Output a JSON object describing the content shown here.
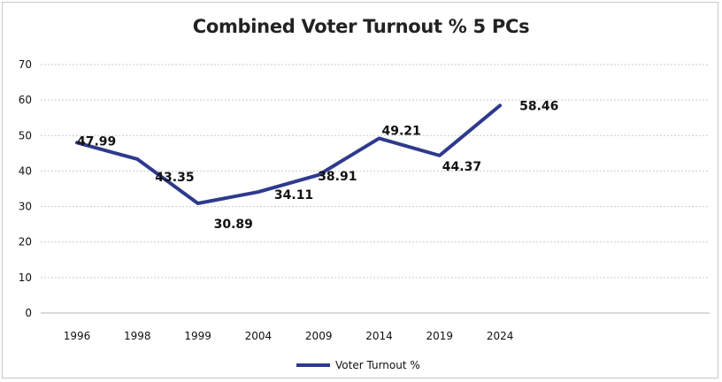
{
  "chart_data": {
    "type": "line",
    "title": "Combined Voter Turnout % 5 PCs",
    "categories": [
      "1996",
      "1998",
      "1999",
      "2004",
      "2009",
      "2014",
      "2019",
      "2024"
    ],
    "series": [
      {
        "name": "Voter Turnout %",
        "values": [
          47.99,
          43.35,
          30.89,
          34.11,
          38.91,
          49.21,
          44.37,
          58.46
        ],
        "data_labels": [
          "47.99",
          "43.35",
          "30.89",
          "34.11",
          "38.91",
          "49.21",
          "44.37",
          "58.46"
        ],
        "color": "#2e3a8c"
      }
    ],
    "ylim": [
      0,
      70
    ],
    "yticks": [
      0,
      10,
      20,
      30,
      40,
      50,
      60,
      70
    ],
    "grid": true,
    "legend": "bottom-center"
  }
}
